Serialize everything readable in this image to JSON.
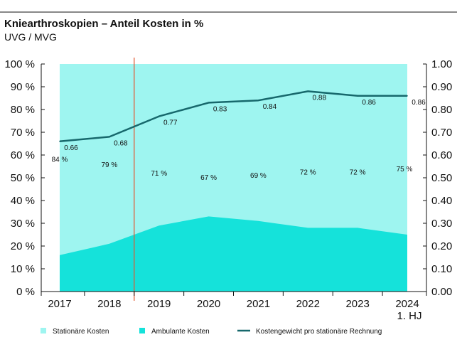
{
  "chart_data": {
    "type": "area",
    "title": "Kniearthroskopien – Anteil Kosten in %",
    "subtitle": "UVG / MVG",
    "categories": [
      "2017",
      "2018",
      "2019",
      "2020",
      "2021",
      "2022",
      "2023",
      "2024"
    ],
    "category_sublabels": [
      "",
      "",
      "",
      "",
      "",
      "",
      "",
      "1. HJ"
    ],
    "y_left": {
      "ylim": [
        0,
        100
      ],
      "ticks": [
        0,
        10,
        20,
        30,
        40,
        50,
        60,
        70,
        80,
        90,
        100
      ],
      "tick_labels": [
        "0 %",
        "10 %",
        "20 %",
        "30 %",
        "40 %",
        "50 %",
        "60 %",
        "70 %",
        "80 %",
        "90 %",
        "100 %"
      ]
    },
    "y_right": {
      "ylim": [
        0,
        1
      ],
      "ticks": [
        0,
        0.1,
        0.2,
        0.3,
        0.4,
        0.5,
        0.6,
        0.7,
        0.8,
        0.9,
        1.0
      ],
      "tick_labels": [
        "0.00",
        "0.10",
        "0.20",
        "0.30",
        "0.40",
        "0.50",
        "0.60",
        "0.70",
        "0.80",
        "0.90",
        "1.00"
      ]
    },
    "series": [
      {
        "name": "Stationäre Kosten",
        "axis": "left",
        "kind": "area",
        "color": "#9ef5f0",
        "values": [
          84,
          79,
          71,
          67,
          69,
          72,
          72,
          75
        ],
        "labels": [
          "84 %",
          "79 %",
          "71 %",
          "67 %",
          "69 %",
          "72 %",
          "72 %",
          "75 %"
        ]
      },
      {
        "name": "Ambulante Kosten",
        "axis": "left",
        "kind": "area",
        "color": "#15e2da",
        "values": [
          16,
          21,
          29,
          33,
          31,
          28,
          28,
          25
        ]
      },
      {
        "name": "Kostengewicht pro stationäre Rechnung",
        "axis": "right",
        "kind": "line",
        "color": "#17686c",
        "values": [
          0.66,
          0.68,
          0.77,
          0.83,
          0.84,
          0.88,
          0.86,
          0.86
        ],
        "labels": [
          "0.66",
          "0.68",
          "0.77",
          "0.83",
          "0.84",
          "0.88",
          "0.86",
          "0.86"
        ]
      }
    ],
    "annotations": [
      {
        "type": "vertical-line",
        "between": [
          "2018",
          "2019"
        ],
        "color": "#e0552d"
      }
    ],
    "legend_position": "bottom",
    "grid": false
  }
}
